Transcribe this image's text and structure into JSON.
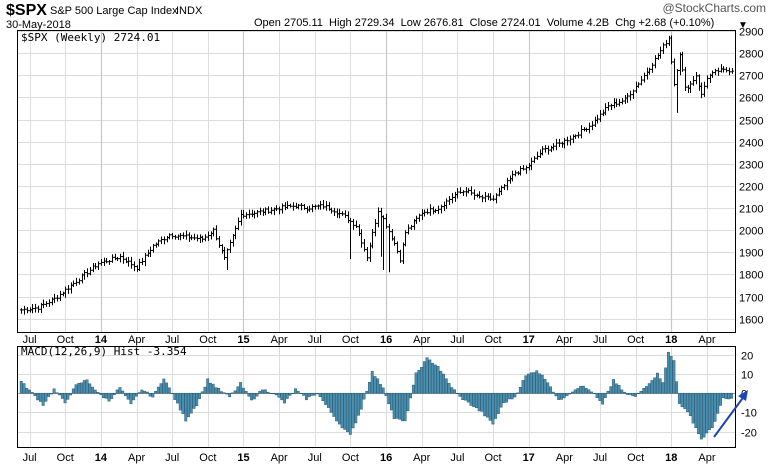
{
  "header": {
    "symbol": "$SPX",
    "name": "S&P 500 Large Cap Index",
    "exchange": "INDX",
    "date": "30-May-2018",
    "watermark": "@StockCharts.com",
    "ohlc": "Open 2705.11  High 2729.34  Low 2676.81  Close 2724.01  Volume 4.2B  Chg +2.68 (+0.10%)",
    "close_marker": "▼"
  },
  "chart_data": [
    {
      "type": "ohlc",
      "title": "$SPX (Weekly) 2724.01",
      "ylim": [
        1540,
        2900
      ],
      "yticks": [
        1600,
        1700,
        1800,
        1900,
        2000,
        2100,
        2200,
        2300,
        2400,
        2500,
        2600,
        2700,
        2800,
        2900
      ],
      "xticks": [
        "Jul",
        "Oct",
        "14",
        "Apr",
        "Jul",
        "Oct",
        "15",
        "Apr",
        "Jul",
        "Oct",
        "16",
        "Apr",
        "Jul",
        "Oct",
        "17",
        "Apr",
        "Jul",
        "Oct",
        "18",
        "Apr"
      ],
      "xtick_weeks": [
        3,
        16,
        29,
        42,
        55,
        68,
        81,
        94,
        107,
        120,
        133,
        146,
        159,
        172,
        185,
        198,
        211,
        224,
        237,
        250
      ],
      "year_marks": [
        29,
        81,
        133,
        185,
        237
      ],
      "weeks": 260,
      "close_anchor_week": [
        0,
        6,
        12,
        20,
        28,
        36,
        42,
        48,
        54,
        60,
        66,
        70,
        74,
        80,
        86,
        94,
        100,
        104,
        110,
        114,
        118,
        122,
        126,
        130,
        132,
        136,
        138,
        140,
        146,
        152,
        158,
        162,
        166,
        172,
        176,
        180,
        184,
        190,
        196,
        202,
        208,
        214,
        220,
        226,
        232,
        236,
        238,
        240,
        242,
        244,
        246,
        248,
        250,
        254,
        259
      ],
      "close_anchor_value": [
        1640,
        1650,
        1690,
        1770,
        1850,
        1880,
        1830,
        1930,
        1980,
        1970,
        1960,
        2000,
        1870,
        2070,
        2080,
        2100,
        2110,
        2100,
        2110,
        2090,
        2060,
        2020,
        1880,
        2090,
        2050,
        1940,
        1870,
        1990,
        2080,
        2100,
        2160,
        2180,
        2150,
        2140,
        2200,
        2260,
        2280,
        2360,
        2390,
        2430,
        2480,
        2560,
        2590,
        2680,
        2790,
        2870,
        2660,
        2800,
        2640,
        2660,
        2700,
        2610,
        2690,
        2720,
        2724
      ],
      "intra_week_low": [
        75,
        120,
        126,
        131,
        132,
        134,
        239
      ],
      "intra_week_low_value": [
        1820,
        1870,
        1860,
        1880,
        1820,
        1810,
        2530
      ]
    },
    {
      "type": "bar",
      "title": "MACD(12,26,9) Hist -3.354",
      "ylim": [
        -28,
        24
      ],
      "yticks": [
        20,
        10,
        0,
        -10,
        -20
      ],
      "xticks": [
        "Jul",
        "Oct",
        "14",
        "Apr",
        "Jul",
        "Oct",
        "15",
        "Apr",
        "Jul",
        "Oct",
        "16",
        "Apr",
        "Jul",
        "Oct",
        "17",
        "Apr",
        "Jul",
        "Oct",
        "18",
        "Apr"
      ],
      "hist_anchor_week": [
        0,
        4,
        8,
        12,
        16,
        20,
        24,
        28,
        32,
        36,
        40,
        44,
        48,
        52,
        56,
        60,
        64,
        68,
        72,
        76,
        80,
        84,
        88,
        92,
        96,
        100,
        104,
        108,
        112,
        116,
        120,
        124,
        128,
        132,
        136,
        140,
        144,
        148,
        152,
        156,
        160,
        164,
        168,
        172,
        176,
        180,
        184,
        188,
        192,
        196,
        200,
        204,
        208,
        212,
        216,
        220,
        224,
        228,
        232,
        234,
        236,
        238,
        240,
        244,
        248,
        252,
        256,
        259
      ],
      "hist_anchor_value": [
        6,
        0,
        -6,
        2,
        -5,
        4,
        7,
        0,
        -4,
        3,
        -6,
        2,
        -2,
        8,
        -3,
        -14,
        -6,
        7,
        2,
        -2,
        5,
        -4,
        2,
        0,
        -5,
        2,
        -3,
        0,
        -8,
        -16,
        -22,
        -8,
        11,
        3,
        -13,
        -15,
        10,
        18,
        14,
        5,
        -2,
        -6,
        -10,
        -16,
        -5,
        -2,
        9,
        12,
        6,
        -4,
        0,
        4,
        1,
        -6,
        7,
        0,
        -2,
        4,
        10,
        6,
        21,
        17,
        -5,
        -12,
        -24,
        -18,
        -3,
        -3
      ]
    }
  ],
  "colors": {
    "bar_stroke": "#000000",
    "hist_fill": "#4a8fb0",
    "hist_stroke": "#1d4b62",
    "arrow": "#1a46b8",
    "grid": "#dcdcdc"
  }
}
